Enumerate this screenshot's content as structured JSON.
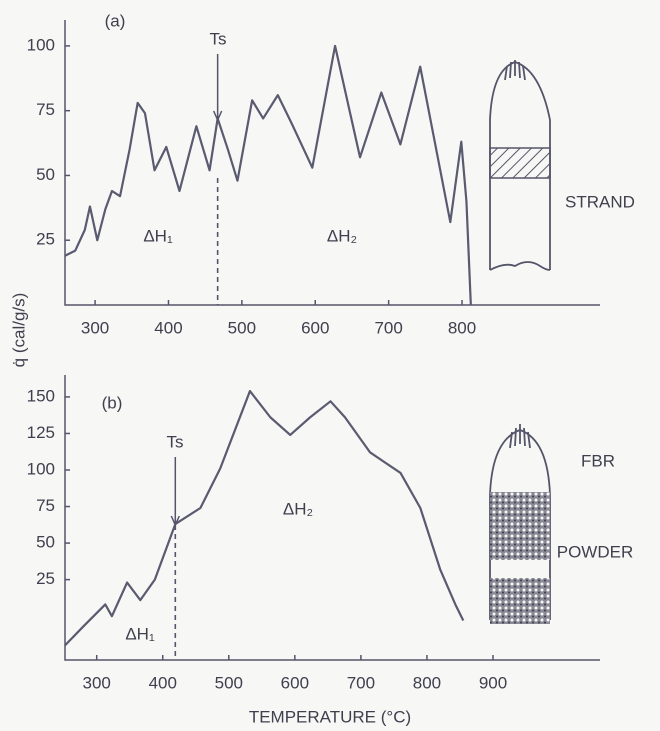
{
  "chart_data": [
    {
      "type": "line",
      "y_label": "q̇ (cal/g/s)",
      "annotations": {
        "panel": "(a)",
        "ts_label": "Ts",
        "dh1": "ΔH₁",
        "dh2": "ΔH₂",
        "sample": [
          "STRAND"
        ]
      },
      "ts": 467,
      "x": [
        259,
        273,
        286,
        293,
        303,
        314,
        323,
        334,
        347,
        358,
        368,
        381,
        397,
        415,
        438,
        456,
        467,
        481,
        494,
        514,
        529,
        549,
        568,
        596,
        627,
        661,
        690,
        716,
        743,
        784,
        799,
        806,
        812
      ],
      "series": [
        {
          "color": "#5a5a70",
          "values": [
            19,
            21,
            29,
            38,
            25,
            37,
            44,
            42,
            60,
            78,
            74,
            52,
            61,
            44,
            69,
            52,
            72,
            60,
            48,
            79,
            72,
            81,
            70,
            53,
            100,
            57,
            82,
            62,
            92,
            32,
            63,
            40,
            0
          ]
        }
      ],
      "xlim": [
        259,
        988
      ],
      "xticks": [
        300,
        400,
        500,
        600,
        700,
        800
      ],
      "ylim": [
        0,
        110
      ],
      "yticks": [
        25,
        50,
        75,
        100
      ]
    },
    {
      "type": "line",
      "x_label": "TEMPERATURE (°C)",
      "annotations": {
        "panel": "(b)",
        "ts_label": "Ts",
        "dh1": "ΔH₁",
        "dh2": "ΔH₂",
        "sample": [
          "FBR",
          "POWDER"
        ]
      },
      "ts": 419,
      "x": [
        252,
        282,
        313,
        323,
        346,
        366,
        388,
        419,
        457,
        487,
        532,
        563,
        593,
        623,
        654,
        676,
        714,
        760,
        790,
        820,
        843,
        855
      ],
      "series": [
        {
          "color": "#5a5a70",
          "values": [
            -20,
            -6,
            8,
            0,
            23,
            11,
            25,
            63,
            74,
            101,
            154,
            136,
            124,
            136,
            147,
            136,
            112,
            98,
            74,
            32,
            8,
            -3
          ]
        }
      ],
      "xlim": [
        252,
        1062
      ],
      "xticks": [
        300,
        400,
        500,
        600,
        700,
        800,
        900
      ],
      "ylim": [
        -30,
        165
      ],
      "yticks": [
        25,
        50,
        75,
        100,
        125,
        150
      ]
    }
  ]
}
